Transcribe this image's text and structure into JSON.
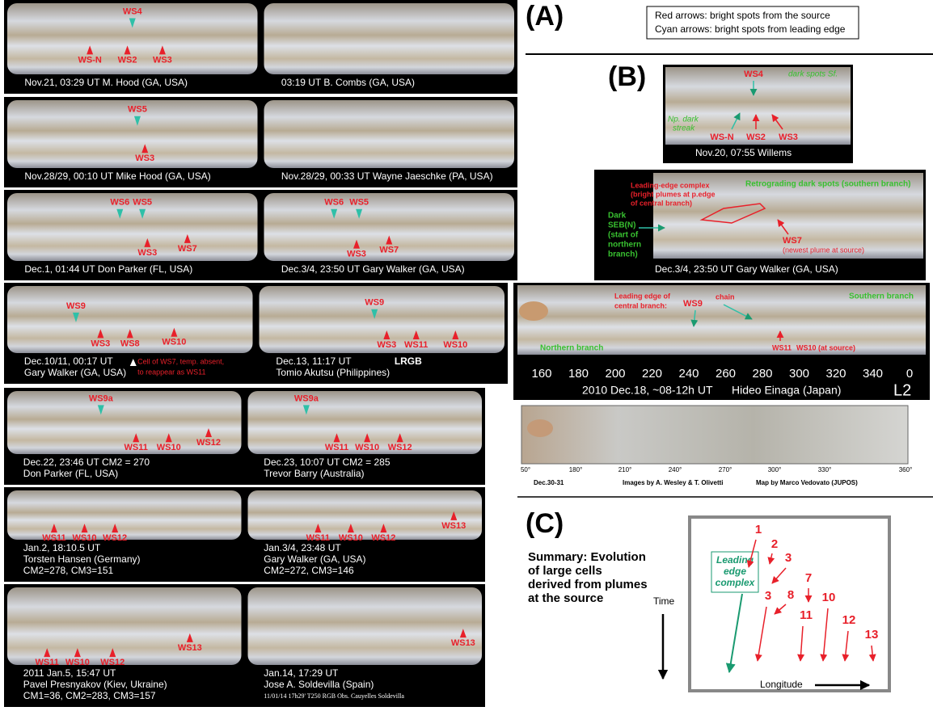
{
  "panel_a": {
    "label": "(A)",
    "legend": [
      "Red arrows: bright spots from the source",
      "Cyan arrows: bright spots from leading edge"
    ],
    "frames": [
      {
        "caption": [
          "Nov.21, 03:29 UT   M. Hood (GA, USA)"
        ],
        "labels": [
          "WS4",
          "WS-N",
          "WS2",
          "WS3"
        ]
      },
      {
        "caption": [
          "03:19 UT   B. Combs  (GA, USA)"
        ]
      },
      {
        "caption": [
          "Nov.28/29, 00:10 UT  Mike Hood (GA, USA)"
        ],
        "labels": [
          "WS5",
          "WS3"
        ]
      },
      {
        "caption": [
          "Nov.28/29, 00:33 UT  Wayne Jaeschke (PA, USA)"
        ]
      },
      {
        "caption": [
          "Dec.1, 01:44 UT   Don Parker (FL, USA)"
        ],
        "labels": [
          "WS6",
          "WS5",
          "WS3",
          "WS7"
        ]
      },
      {
        "caption": [
          "Dec.3/4, 23:50 UT    Gary Walker  (GA, USA)"
        ],
        "labels": [
          "WS6",
          "WS5",
          "WS3",
          "WS7"
        ]
      },
      {
        "caption": [
          "Dec.10/11, 00:17 UT",
          "Gary Walker (GA, USA)"
        ],
        "labels": [
          "WS9",
          "WS3",
          "WS8",
          "WS10"
        ],
        "note": [
          "Cell of WS7, temp. absent,",
          "to reappear as WS11"
        ]
      },
      {
        "caption": [
          "Dec.13, 11:17 UT",
          "Tomio Akutsu  (Philippines)"
        ],
        "labels": [
          "WS9",
          "WS3",
          "WS11",
          "WS10"
        ],
        "filter": "LRGB"
      },
      {
        "caption": [
          "Dec.22, 23:46 UT    CM2 = 270",
          "Don Parker (FL, USA)"
        ],
        "labels": [
          "WS9a",
          "WS11",
          "WS10",
          "WS12"
        ]
      },
      {
        "caption": [
          "Dec.23, 10:07 UT     CM2 = 285",
          "Trevor Barry (Australia)"
        ],
        "labels": [
          "WS9a",
          "WS11",
          "WS10",
          "WS12"
        ]
      },
      {
        "caption": [
          "Jan.2, 18:10.5 UT",
          "Torsten Hansen (Germany)",
          "CM2=278, CM3=151"
        ],
        "labels": [
          "WS11",
          "WS10",
          "WS12"
        ]
      },
      {
        "caption": [
          "Jan.3/4, 23:48 UT",
          "Gary Walker (GA, USA)",
          "CM2=272, CM3=146"
        ],
        "labels": [
          "WS11",
          "WS10",
          "WS12",
          "WS13"
        ]
      },
      {
        "caption": [
          "2011 Jan.5, 15:47 UT",
          "Pavel Presnyakov (Kiev, Ukraine)",
          "CM1=36, CM2=283, CM3=157"
        ],
        "labels": [
          "WS11",
          "WS10",
          "WS12",
          "WS13"
        ]
      },
      {
        "caption": [
          "Jan.14, 17:29 UT",
          "Jose A. Soldevilla (Spain)",
          "11/01/14 17h29' T250 RGB Obs. Cauyelles Soldevilla"
        ],
        "labels": [
          "WS13"
        ]
      }
    ]
  },
  "panel_b": {
    "label": "(B)",
    "image_1": {
      "labels": [
        "WS4",
        "dark spots Sf.",
        "Np. dark",
        "streak",
        "WS-N",
        "WS2",
        "WS3"
      ],
      "caption": "Nov.20, 07:55      Willems"
    },
    "image_2": {
      "leading_edge": [
        "Leading-edge complex",
        "(bright plumes at p.edge",
        "of central branch)"
      ],
      "retrograding": "Retrograding dark spots (southern branch)",
      "dark_seb": [
        "Dark",
        "SEB(N)",
        "(start of",
        "northern",
        "branch)"
      ],
      "ws7": [
        "WS7",
        "(newest plume at source)"
      ],
      "caption": "Dec.3/4, 23:50 UT    Gary Walker  (GA, USA)"
    },
    "image_3": {
      "leading_edge": [
        "Leading edge of",
        "central branch:"
      ],
      "labels": [
        "WS9",
        "chain",
        "Southern branch",
        "Northern branch",
        "WS11",
        "WS10 (at source)"
      ],
      "longitudes": [
        160,
        180,
        200,
        220,
        240,
        260,
        280,
        300,
        320,
        340,
        0
      ],
      "caption": [
        "2010 Dec.18, ~08-12h UT",
        "Hideo Einaga (Japan)"
      ],
      "system": "L2"
    },
    "map": {
      "longitudes": [
        "50°",
        "180°",
        "210°",
        "240°",
        "270°",
        "300°",
        "330°",
        "360°"
      ],
      "credits": [
        "Dec.30-31",
        "Images by A. Wesley & T. Olivetti",
        "Map by Marco Vedovato (JUPOS)"
      ]
    }
  },
  "panel_c": {
    "label": "(C)",
    "summary": [
      "Summary: Evolution",
      "of large cells",
      "derived from plumes",
      "at the source"
    ],
    "leading_edge": [
      "Leading",
      "edge",
      "complex"
    ],
    "cells": [
      1,
      2,
      3,
      3,
      7,
      8,
      10,
      11,
      12,
      13
    ],
    "time": "Time",
    "longitude": "Longitude"
  }
}
